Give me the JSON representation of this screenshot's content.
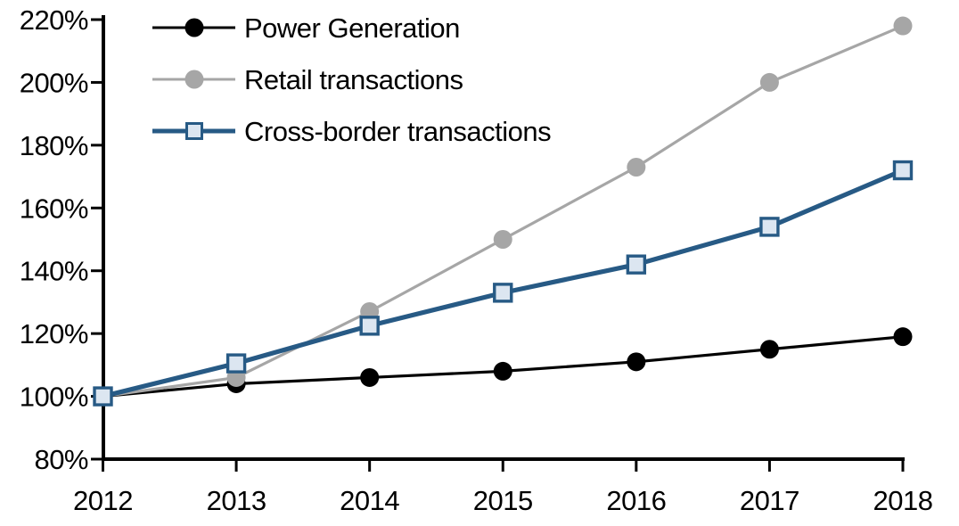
{
  "chart_data": {
    "type": "line",
    "title": "",
    "xlabel": "",
    "ylabel": "",
    "categories": [
      "2012",
      "2013",
      "2014",
      "2015",
      "2016",
      "2017",
      "2018"
    ],
    "series": [
      {
        "name": "Power Generation",
        "color": "#000000",
        "line_width": 3.2,
        "marker": "circle",
        "marker_fill": "#000000",
        "values": [
          100,
          104,
          106,
          108,
          111,
          115,
          119
        ]
      },
      {
        "name": "Retail transactions",
        "color": "#a6a6a6",
        "line_width": 3.2,
        "marker": "circle",
        "marker_fill": "#a6a6a6",
        "values": [
          100,
          106,
          127,
          150,
          173,
          200,
          218
        ]
      },
      {
        "name": "Cross-border transactions",
        "color": "#275a85",
        "line_width": 5.2,
        "marker": "square",
        "marker_fill": "#dce6f1",
        "marker_border": "#275a85",
        "values": [
          100,
          110.5,
          122.5,
          133,
          142,
          154,
          172
        ]
      }
    ],
    "ylim": [
      80,
      220
    ],
    "y_tick_values": [
      220,
      200,
      180,
      160,
      140,
      120,
      100,
      80
    ],
    "y_tick_labels": [
      "220%",
      "200%",
      "180%",
      "160%",
      "140%",
      "120%",
      "100%",
      "80%"
    ],
    "x_tick_labels": [
      "2012",
      "2013",
      "2014",
      "2015",
      "2016",
      "2017",
      "2018"
    ],
    "grid": false,
    "legend_position": "top-left",
    "axis_color": "#000000",
    "background_color": "#ffffff"
  }
}
